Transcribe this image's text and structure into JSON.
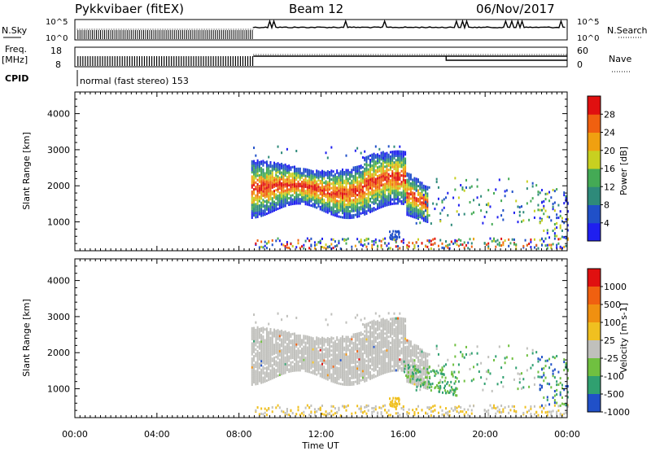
{
  "header": {
    "station": "Pykkvibaer (fitEX)",
    "beam": "Beam 12",
    "date": "06/Nov/2017"
  },
  "summary": {
    "nsky_label": "N.Sky",
    "nsearch_label": "N.Search",
    "count_ticks": [
      "10^5",
      "10^0"
    ],
    "freq_label_1": "Freq.",
    "freq_label_2": "[MHz]",
    "freq_ticks": [
      "18",
      "8"
    ],
    "nave_label": "Nave",
    "nave_ticks": [
      "60",
      "0"
    ],
    "cpid_label": "CPID",
    "cpid_text": "normal (fast stereo) 153"
  },
  "colors": {
    "power_scale": [
      "#1f1ff0",
      "#2050c8",
      "#2e8a7a",
      "#44aa55",
      "#c8d020",
      "#f0a010",
      "#f06010",
      "#e01010"
    ],
    "velocity_scale": [
      "#e01010",
      "#f06010",
      "#f09010",
      "#f0c020",
      "#c0c0bc",
      "#70c040",
      "#30a070",
      "#2050c8"
    ]
  },
  "chart_data": [
    {
      "type": "heatmap",
      "name": "power",
      "ylabel": "Slant Range [km]",
      "ylim": [
        200,
        4600
      ],
      "yticks": [
        "1000",
        "2000",
        "3000",
        "4000"
      ],
      "xticks": [
        "00:00",
        "04:00",
        "08:00",
        "12:00",
        "16:00",
        "20:00",
        "00:00"
      ],
      "colorbar_label": "Power [dB]",
      "colorbar_ticks": [
        "4",
        "8",
        "12",
        "16",
        "20",
        "24",
        "28"
      ]
    },
    {
      "type": "heatmap",
      "name": "velocity",
      "ylabel": "Slant Range [km]",
      "xlabel": "Time UT",
      "ylim": [
        200,
        4600
      ],
      "yticks": [
        "1000",
        "2000",
        "3000",
        "4000"
      ],
      "xticks": [
        "00:00",
        "04:00",
        "08:00",
        "12:00",
        "16:00",
        "20:00",
        "00:00"
      ],
      "colorbar_label": "Velocity [m s-1]",
      "colorbar_ticks": [
        "1000",
        "500",
        "100",
        "25",
        "-25",
        "-100",
        "-500",
        "-1000"
      ]
    }
  ]
}
